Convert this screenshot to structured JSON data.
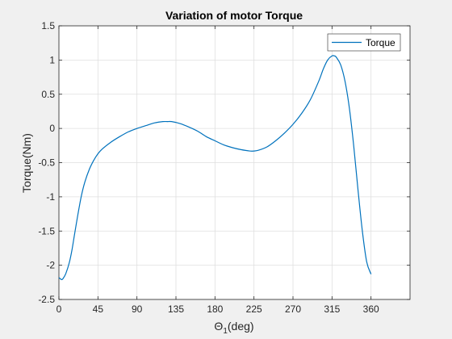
{
  "chart_data": {
    "type": "line",
    "title": "Variation of motor Torque",
    "xlabel_main": "Θ",
    "xlabel_sub": "1",
    "xlabel_suffix": "(deg)",
    "ylabel": "Torque(Nm)",
    "xlim": [
      0,
      405
    ],
    "ylim": [
      -2.5,
      1.5
    ],
    "xticks": [
      0,
      45,
      90,
      135,
      180,
      225,
      270,
      315,
      360
    ],
    "yticks": [
      -2.5,
      -2,
      -1.5,
      -1,
      -0.5,
      0,
      0.5,
      1,
      1.5
    ],
    "ytick_labels": [
      "-2.5",
      "-2",
      "-1.5",
      "-1",
      "-0.5",
      "0",
      "0.5",
      "1",
      "1.5"
    ],
    "grid": true,
    "legend_position": "top-right",
    "series": [
      {
        "name": "Torque",
        "color": "#0072BD",
        "x": [
          0,
          3,
          5,
          8,
          12,
          15,
          18,
          22,
          26,
          30,
          35,
          40,
          45,
          50,
          60,
          70,
          80,
          90,
          100,
          110,
          120,
          125,
          130,
          140,
          150,
          160,
          170,
          180,
          190,
          200,
          210,
          220,
          225,
          230,
          240,
          250,
          260,
          270,
          280,
          290,
          300,
          305,
          310,
          315,
          318,
          320,
          325,
          330,
          335,
          340,
          345,
          350,
          355,
          360
        ],
        "y": [
          -2.18,
          -2.21,
          -2.19,
          -2.12,
          -1.96,
          -1.78,
          -1.55,
          -1.25,
          -0.98,
          -0.78,
          -0.6,
          -0.47,
          -0.37,
          -0.3,
          -0.2,
          -0.12,
          -0.05,
          0.0,
          0.04,
          0.08,
          0.1,
          0.1,
          0.1,
          0.07,
          0.02,
          -0.04,
          -0.12,
          -0.18,
          -0.24,
          -0.28,
          -0.31,
          -0.33,
          -0.33,
          -0.32,
          -0.27,
          -0.18,
          -0.07,
          0.06,
          0.22,
          0.42,
          0.7,
          0.87,
          1.0,
          1.06,
          1.06,
          1.04,
          0.93,
          0.69,
          0.3,
          -0.25,
          -0.9,
          -1.5,
          -1.95,
          -2.13
        ]
      }
    ]
  }
}
